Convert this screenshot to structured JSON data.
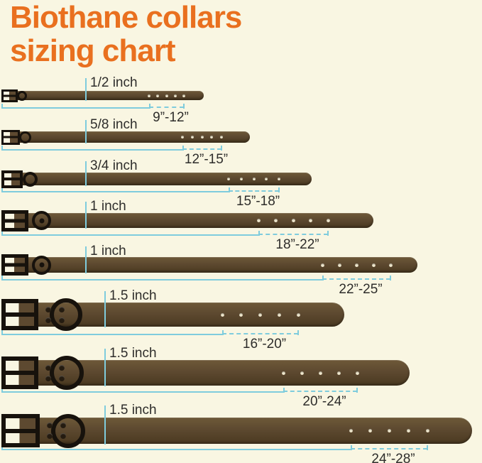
{
  "title": {
    "line1": "Biothane collars",
    "line2": "sizing chart"
  },
  "colors": {
    "background": "#f9f6e2",
    "title": "#e9701f",
    "collar_light": "#6e5938",
    "collar_mid": "#5d4930",
    "collar_dark": "#4a3920",
    "hardware": "#17120c",
    "measure": "#7fccdd",
    "text": "#2e2d2b",
    "hole": "#efe7cd"
  },
  "collars": [
    {
      "width_label": "1/2 inch",
      "size_range": "9”-12”",
      "hole_count": 5
    },
    {
      "width_label": "5/8 inch",
      "size_range": "12”-15”",
      "hole_count": 5
    },
    {
      "width_label": "3/4 inch",
      "size_range": "15”-18”",
      "hole_count": 5
    },
    {
      "width_label": "1 inch",
      "size_range": "18”-22”",
      "hole_count": 5
    },
    {
      "width_label": "1 inch",
      "size_range": "22”-25”",
      "hole_count": 5
    },
    {
      "width_label": "1.5 inch",
      "size_range": "16”-20”",
      "hole_count": 5
    },
    {
      "width_label": "1.5 inch",
      "size_range": "20”-24”",
      "hole_count": 5
    },
    {
      "width_label": "1.5 inch",
      "size_range": "24”-28”",
      "hole_count": 5
    }
  ]
}
